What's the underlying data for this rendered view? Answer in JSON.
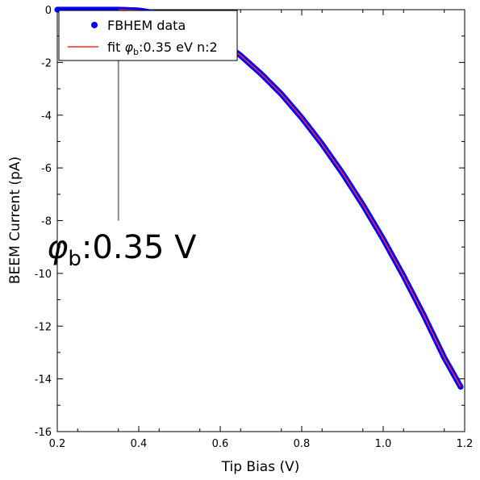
{
  "chart_data": {
    "type": "scatter",
    "xlabel": "Tip Bias (V)",
    "ylabel": "BEEM Current (pA)",
    "xlim": [
      0.2,
      1.2
    ],
    "ylim": [
      -16,
      0
    ],
    "x_ticks": [
      "0.2",
      "0.4",
      "0.6",
      "0.8",
      "1.0",
      "1.2"
    ],
    "y_ticks": [
      "0",
      "-2",
      "-4",
      "-6",
      "-8",
      "-10",
      "-12",
      "-14",
      "-16"
    ],
    "grid": false,
    "legend_position": "top-left",
    "series": [
      {
        "name": "FBHEM data",
        "kind": "markers",
        "color": "#0000ff",
        "x": [
          0.2,
          0.25,
          0.3,
          0.35,
          0.4,
          0.45,
          0.5,
          0.55,
          0.6,
          0.65,
          0.7,
          0.75,
          0.8,
          0.85,
          0.9,
          0.95,
          1.0,
          1.05,
          1.1,
          1.15,
          1.19
        ],
        "y": [
          0,
          0,
          0,
          0,
          -0.03,
          -0.15,
          -0.36,
          -0.72,
          -1.17,
          -1.74,
          -2.43,
          -3.2,
          -4.1,
          -5.1,
          -6.2,
          -7.4,
          -8.7,
          -10.1,
          -11.6,
          -13.2,
          -14.3
        ]
      },
      {
        "name": "fit",
        "name_phi": "φ",
        "name_sub": "b",
        "name_rest": ":0.35 eV n:2",
        "kind": "line",
        "color": "#ff2a2a",
        "x": [
          0.35,
          0.4,
          0.45,
          0.5,
          0.55,
          0.6,
          0.65,
          0.7,
          0.75,
          0.8,
          0.85,
          0.9,
          0.95,
          1.0,
          1.05,
          1.1,
          1.15,
          1.19
        ],
        "y": [
          0,
          -0.03,
          -0.15,
          -0.36,
          -0.72,
          -1.17,
          -1.74,
          -2.43,
          -3.2,
          -4.1,
          -5.1,
          -6.2,
          -7.4,
          -8.7,
          -10.1,
          -11.6,
          -13.2,
          -14.3
        ]
      }
    ],
    "annotation": {
      "phi": "φ",
      "sub": "b",
      "rest": ":0.35 V",
      "arrow_x": 0.35,
      "arrow_y_from": -8,
      "arrow_y_to": 0,
      "color": "#8c8c8c"
    }
  }
}
